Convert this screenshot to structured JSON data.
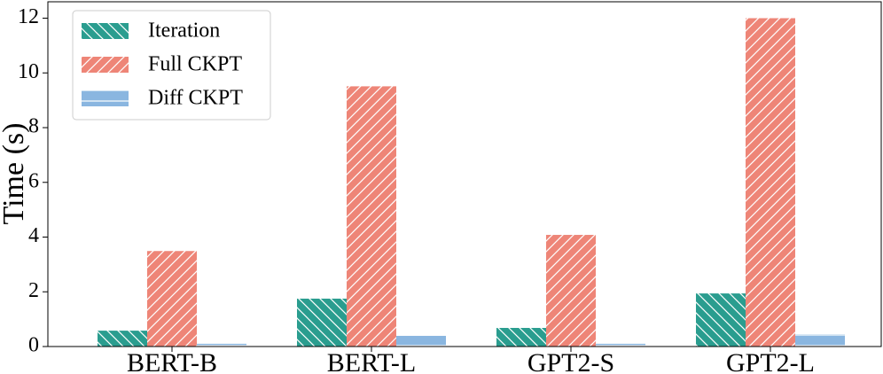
{
  "chart_data": {
    "type": "bar",
    "y_label": "Time (s)",
    "categories": [
      "BERT-B",
      "BERT-L",
      "GPT2-S",
      "GPT2-L"
    ],
    "series": [
      {
        "name": "Iteration",
        "color": "#2a9d8f",
        "hatch": "backslash",
        "values": [
          0.58,
          1.75,
          0.68,
          1.94
        ]
      },
      {
        "name": "Full CKPT",
        "color": "#ee8577",
        "hatch": "slash",
        "values": [
          3.49,
          9.51,
          4.08,
          12.0
        ]
      },
      {
        "name": "Diff CKPT",
        "color": "#8ab6e0",
        "hatch": "horizontal",
        "values": [
          0.1,
          0.39,
          0.1,
          0.45
        ]
      }
    ],
    "ylim": [
      0,
      12.6
    ],
    "yticks": [
      0,
      2,
      4,
      6,
      8,
      10,
      12
    ],
    "legend": "upper left"
  }
}
